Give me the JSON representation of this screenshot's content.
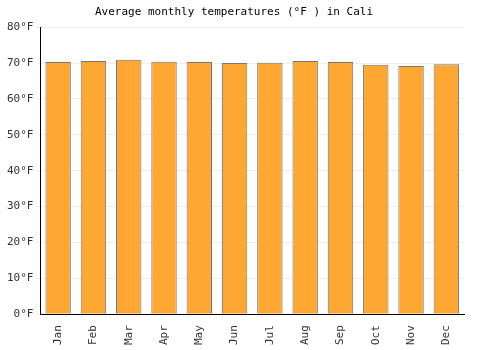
{
  "chart_data": {
    "type": "bar",
    "title": "Average monthly temperatures (°F ) in Cali",
    "categories": [
      "Jan",
      "Feb",
      "Mar",
      "Apr",
      "May",
      "Jun",
      "Jul",
      "Aug",
      "Sep",
      "Oct",
      "Nov",
      "Dec"
    ],
    "values": [
      70.3,
      70.6,
      70.9,
      70.4,
      70.3,
      70.0,
      70.1,
      70.6,
      70.3,
      69.5,
      69.2,
      69.7
    ],
    "color": "#ffa733",
    "ylim": [
      0,
      80
    ],
    "yticks": [
      {
        "value": 0,
        "label": "0°F"
      },
      {
        "value": 10,
        "label": "10°F"
      },
      {
        "value": 20,
        "label": "20°F"
      },
      {
        "value": 30,
        "label": "30°F"
      },
      {
        "value": 40,
        "label": "40°F"
      },
      {
        "value": 50,
        "label": "50°F"
      },
      {
        "value": 60,
        "label": "60°F"
      },
      {
        "value": 70,
        "label": "70°F"
      },
      {
        "value": 80,
        "label": "80°F"
      }
    ],
    "grid": true
  }
}
